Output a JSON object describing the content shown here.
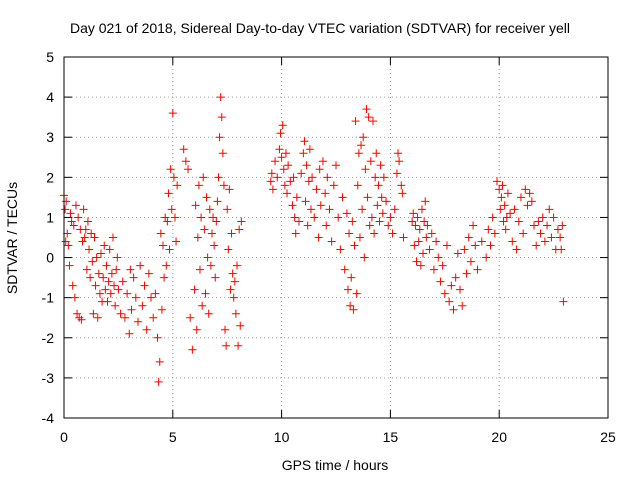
{
  "chart_data": {
    "type": "scatter",
    "title": "Day 021 of 2018, Sidereal Day-to-day VTEC variation (SDTVAR) for receiver yell",
    "xlabel": "GPS time / hours",
    "ylabel": "SDTVAR / TECUs",
    "xlim": [
      0,
      25
    ],
    "ylim": [
      -4,
      5
    ],
    "xticks": [
      0,
      5,
      10,
      15,
      20,
      25
    ],
    "yticks": [
      -4,
      -3,
      -2,
      -1,
      0,
      1,
      2,
      3,
      4,
      5
    ],
    "xtick_labels": [
      "0",
      "5",
      "10",
      "15",
      "20",
      "25"
    ],
    "ytick_labels": [
      "-4",
      "-3",
      "-2",
      "-1",
      "0",
      "1",
      "2",
      "3",
      "4",
      "5"
    ],
    "grid": true,
    "marker": "plus",
    "marker_color": "#ff0000",
    "series": [
      {
        "name": "SDTVAR",
        "points": [
          [
            0.0,
            1.55
          ],
          [
            0.05,
            1.2
          ],
          [
            0.08,
            0.4
          ],
          [
            0.1,
            1.4
          ],
          [
            0.15,
            0.6
          ],
          [
            0.2,
            0.3
          ],
          [
            0.25,
            -0.2
          ],
          [
            0.3,
            1.1
          ],
          [
            0.35,
            0.9
          ],
          [
            0.4,
            -0.7
          ],
          [
            0.45,
            0.8
          ],
          [
            0.5,
            -1.0
          ],
          [
            0.55,
            1.3
          ],
          [
            0.6,
            -1.4
          ],
          [
            0.65,
            1.0
          ],
          [
            0.7,
            -1.5
          ],
          [
            0.75,
            0.7
          ],
          [
            0.8,
            -1.55
          ],
          [
            0.85,
            0.4
          ],
          [
            0.9,
            1.2
          ],
          [
            0.95,
            0.5
          ],
          [
            1.0,
            0.7
          ],
          [
            1.05,
            -0.3
          ],
          [
            1.1,
            0.9
          ],
          [
            1.15,
            0.2
          ],
          [
            1.2,
            -0.5
          ],
          [
            1.25,
            0.6
          ],
          [
            1.3,
            -0.1
          ],
          [
            1.35,
            -1.4
          ],
          [
            1.4,
            0.5
          ],
          [
            1.45,
            -0.7
          ],
          [
            1.5,
            0.0
          ],
          [
            1.55,
            -1.5
          ],
          [
            1.6,
            -0.4
          ],
          [
            1.65,
            -0.9
          ],
          [
            1.7,
            0.1
          ],
          [
            1.75,
            -1.1
          ],
          [
            1.8,
            -0.5
          ],
          [
            1.85,
            0.3
          ],
          [
            1.9,
            -0.8
          ],
          [
            1.95,
            -0.2
          ],
          [
            2.0,
            -1.1
          ],
          [
            2.05,
            -0.6
          ],
          [
            2.1,
            0.2
          ],
          [
            2.15,
            -0.9
          ],
          [
            2.2,
            -0.4
          ],
          [
            2.25,
            0.5
          ],
          [
            2.3,
            -0.7
          ],
          [
            2.35,
            -1.2
          ],
          [
            2.4,
            -0.3
          ],
          [
            2.45,
            0.0
          ],
          [
            2.5,
            -0.8
          ],
          [
            2.6,
            -1.4
          ],
          [
            2.7,
            -0.6
          ],
          [
            2.8,
            -1.5
          ],
          [
            2.9,
            -0.9
          ],
          [
            3.0,
            -1.9
          ],
          [
            3.05,
            -0.3
          ],
          [
            3.1,
            -1.3
          ],
          [
            3.2,
            -0.5
          ],
          [
            3.3,
            -1.0
          ],
          [
            3.4,
            -1.6
          ],
          [
            3.5,
            -0.2
          ],
          [
            3.6,
            -1.2
          ],
          [
            3.7,
            -0.7
          ],
          [
            3.8,
            -1.8
          ],
          [
            3.9,
            -0.4
          ],
          [
            4.0,
            -1.0
          ],
          [
            4.1,
            -1.5
          ],
          [
            4.2,
            -0.9
          ],
          [
            4.3,
            -2.0
          ],
          [
            4.35,
            -3.1
          ],
          [
            4.4,
            -2.6
          ],
          [
            4.45,
            0.6
          ],
          [
            4.5,
            -1.3
          ],
          [
            4.55,
            0.3
          ],
          [
            4.6,
            -0.5
          ],
          [
            4.65,
            1.0
          ],
          [
            4.7,
            -0.2
          ],
          [
            4.75,
            0.9
          ],
          [
            4.8,
            1.6
          ],
          [
            4.85,
            0.2
          ],
          [
            4.9,
            2.2
          ],
          [
            4.95,
            1.2
          ],
          [
            5.0,
            3.6
          ],
          [
            5.05,
            2.0
          ],
          [
            5.1,
            1.0
          ],
          [
            5.15,
            0.4
          ],
          [
            5.2,
            1.8
          ],
          [
            5.5,
            2.7
          ],
          [
            5.6,
            2.4
          ],
          [
            5.7,
            2.2
          ],
          [
            5.8,
            -1.5
          ],
          [
            5.9,
            -2.3
          ],
          [
            6.0,
            -0.8
          ],
          [
            6.05,
            1.3
          ],
          [
            6.1,
            -1.8
          ],
          [
            6.15,
            0.5
          ],
          [
            6.2,
            1.8
          ],
          [
            6.25,
            -0.3
          ],
          [
            6.3,
            1.0
          ],
          [
            6.35,
            -1.2
          ],
          [
            6.4,
            2.0
          ],
          [
            6.45,
            0.7
          ],
          [
            6.5,
            -0.9
          ],
          [
            6.55,
            1.5
          ],
          [
            6.6,
            0.0
          ],
          [
            6.65,
            -1.4
          ],
          [
            6.7,
            1.2
          ],
          [
            6.75,
            -0.2
          ],
          [
            6.8,
            0.6
          ],
          [
            6.85,
            1.0
          ],
          [
            6.9,
            0.3
          ],
          [
            6.95,
            -0.5
          ],
          [
            7.0,
            0.9
          ],
          [
            7.05,
            1.4
          ],
          [
            7.1,
            2.0
          ],
          [
            7.15,
            3.0
          ],
          [
            7.2,
            4.0
          ],
          [
            7.25,
            3.5
          ],
          [
            7.3,
            2.6
          ],
          [
            7.35,
            1.8
          ],
          [
            7.4,
            -1.8
          ],
          [
            7.45,
            -2.2
          ],
          [
            7.5,
            1.2
          ],
          [
            7.55,
            0.2
          ],
          [
            7.6,
            1.7
          ],
          [
            7.65,
            -0.8
          ],
          [
            7.7,
            0.6
          ],
          [
            7.75,
            -0.4
          ],
          [
            7.8,
            -1.0
          ],
          [
            7.85,
            -0.6
          ],
          [
            7.9,
            -1.4
          ],
          [
            7.95,
            -0.2
          ],
          [
            8.0,
            -2.2
          ],
          [
            8.05,
            0.7
          ],
          [
            8.1,
            -1.7
          ],
          [
            8.15,
            0.9
          ],
          [
            9.5,
            1.9
          ],
          [
            9.55,
            2.1
          ],
          [
            9.6,
            1.7
          ],
          [
            9.7,
            2.4
          ],
          [
            9.8,
            2.0
          ],
          [
            9.9,
            2.7
          ],
          [
            9.95,
            3.1
          ],
          [
            10.0,
            2.5
          ],
          [
            10.05,
            3.3
          ],
          [
            10.1,
            2.2
          ],
          [
            10.15,
            1.8
          ],
          [
            10.2,
            2.6
          ],
          [
            10.25,
            1.6
          ],
          [
            10.3,
            2.3
          ],
          [
            10.4,
            1.9
          ],
          [
            10.5,
            1.3
          ],
          [
            10.55,
            2.0
          ],
          [
            10.6,
            1.0
          ],
          [
            10.65,
            0.6
          ],
          [
            10.7,
            1.5
          ],
          [
            10.8,
            0.9
          ],
          [
            10.9,
            2.1
          ],
          [
            11.0,
            2.6
          ],
          [
            11.05,
            2.9
          ],
          [
            11.1,
            1.4
          ],
          [
            11.15,
            2.3
          ],
          [
            11.2,
            0.8
          ],
          [
            11.25,
            1.9
          ],
          [
            11.3,
            2.7
          ],
          [
            11.35,
            1.2
          ],
          [
            11.4,
            2.0
          ],
          [
            11.5,
            1.0
          ],
          [
            11.6,
            1.7
          ],
          [
            11.7,
            0.5
          ],
          [
            11.75,
            2.2
          ],
          [
            11.8,
            1.3
          ],
          [
            11.9,
            2.4
          ],
          [
            12.0,
            1.6
          ],
          [
            12.05,
            0.8
          ],
          [
            12.1,
            2.0
          ],
          [
            12.2,
            1.2
          ],
          [
            12.3,
            0.4
          ],
          [
            12.4,
            1.8
          ],
          [
            12.5,
            2.3
          ],
          [
            12.6,
            1.0
          ],
          [
            12.7,
            0.2
          ],
          [
            12.8,
            1.5
          ],
          [
            12.9,
            -0.3
          ],
          [
            13.0,
            1.1
          ],
          [
            13.05,
            -0.8
          ],
          [
            13.1,
            0.6
          ],
          [
            13.15,
            -1.2
          ],
          [
            13.2,
            -0.5
          ],
          [
            13.25,
            0.9
          ],
          [
            13.3,
            -1.3
          ],
          [
            13.35,
            0.3
          ],
          [
            13.4,
            3.4
          ],
          [
            13.45,
            -0.9
          ],
          [
            13.5,
            1.8
          ],
          [
            13.55,
            2.6
          ],
          [
            13.6,
            0.5
          ],
          [
            13.65,
            2.8
          ],
          [
            13.7,
            1.2
          ],
          [
            13.75,
            3.0
          ],
          [
            13.8,
            0.0
          ],
          [
            13.85,
            2.2
          ],
          [
            13.9,
            3.7
          ],
          [
            13.95,
            1.5
          ],
          [
            14.0,
            3.5
          ],
          [
            14.05,
            0.8
          ],
          [
            14.1,
            2.4
          ],
          [
            14.15,
            1.0
          ],
          [
            14.2,
            3.4
          ],
          [
            14.25,
            0.6
          ],
          [
            14.3,
            2.0
          ],
          [
            14.35,
            2.6
          ],
          [
            14.4,
            1.3
          ],
          [
            14.45,
            1.8
          ],
          [
            14.5,
            0.9
          ],
          [
            14.55,
            2.3
          ],
          [
            14.6,
            1.5
          ],
          [
            14.65,
            1.1
          ],
          [
            14.7,
            2.0
          ],
          [
            14.8,
            1.4
          ],
          [
            14.9,
            0.8
          ],
          [
            15.0,
            1.0
          ],
          [
            15.1,
            0.6
          ],
          [
            15.2,
            1.2
          ],
          [
            15.3,
            2.1
          ],
          [
            15.35,
            2.6
          ],
          [
            15.4,
            2.4
          ],
          [
            15.5,
            1.8
          ],
          [
            15.55,
            1.6
          ],
          [
            15.6,
            0.5
          ],
          [
            16.0,
            0.9
          ],
          [
            16.05,
            1.1
          ],
          [
            16.1,
            0.3
          ],
          [
            16.15,
            0.8
          ],
          [
            16.2,
            -0.1
          ],
          [
            16.25,
            1.0
          ],
          [
            16.3,
            0.4
          ],
          [
            16.35,
            0.7
          ],
          [
            16.4,
            -0.2
          ],
          [
            16.45,
            1.2
          ],
          [
            16.5,
            0.1
          ],
          [
            16.55,
            0.9
          ],
          [
            16.6,
            1.4
          ],
          [
            16.65,
            0.5
          ],
          [
            16.7,
            0.8
          ],
          [
            16.8,
            0.2
          ],
          [
            16.9,
            0.6
          ],
          [
            17.0,
            -0.3
          ],
          [
            17.1,
            0.4
          ],
          [
            17.2,
            0.0
          ],
          [
            17.3,
            -0.6
          ],
          [
            17.4,
            -0.2
          ],
          [
            17.5,
            -0.9
          ],
          [
            17.6,
            0.3
          ],
          [
            17.7,
            -1.1
          ],
          [
            17.8,
            -0.7
          ],
          [
            17.9,
            -1.3
          ],
          [
            18.0,
            -0.5
          ],
          [
            18.1,
            0.1
          ],
          [
            18.2,
            -0.8
          ],
          [
            18.3,
            -1.2
          ],
          [
            18.4,
            0.2
          ],
          [
            18.5,
            -0.4
          ],
          [
            18.6,
            0.5
          ],
          [
            18.7,
            -0.1
          ],
          [
            18.8,
            0.8
          ],
          [
            18.9,
            0.3
          ],
          [
            19.0,
            -0.3
          ],
          [
            19.2,
            0.4
          ],
          [
            19.4,
            0.0
          ],
          [
            19.5,
            0.7
          ],
          [
            19.6,
            0.3
          ],
          [
            19.7,
            1.0
          ],
          [
            19.8,
            0.6
          ],
          [
            19.9,
            1.9
          ],
          [
            20.0,
            1.7
          ],
          [
            20.05,
            1.2
          ],
          [
            20.1,
            1.5
          ],
          [
            20.15,
            1.8
          ],
          [
            20.2,
            0.9
          ],
          [
            20.25,
            1.3
          ],
          [
            20.3,
            0.7
          ],
          [
            20.35,
            1.0
          ],
          [
            20.4,
            1.6
          ],
          [
            20.5,
            1.1
          ],
          [
            20.6,
            0.4
          ],
          [
            20.7,
            1.2
          ],
          [
            20.8,
            0.2
          ],
          [
            20.9,
            0.9
          ],
          [
            21.0,
            1.5
          ],
          [
            21.1,
            0.6
          ],
          [
            21.2,
            1.7
          ],
          [
            21.3,
            1.3
          ],
          [
            21.4,
            1.6
          ],
          [
            21.5,
            1.4
          ],
          [
            21.6,
            0.8
          ],
          [
            21.7,
            0.3
          ],
          [
            21.8,
            0.9
          ],
          [
            21.9,
            0.6
          ],
          [
            22.0,
            1.0
          ],
          [
            22.1,
            0.4
          ],
          [
            22.2,
            0.8
          ],
          [
            22.3,
            1.2
          ],
          [
            22.4,
            0.5
          ],
          [
            22.5,
            1.0
          ],
          [
            22.6,
            0.2
          ],
          [
            22.7,
            0.7
          ],
          [
            22.8,
            0.5
          ],
          [
            22.85,
            0.2
          ],
          [
            22.9,
            0.8
          ],
          [
            22.95,
            -1.1
          ]
        ]
      }
    ]
  }
}
